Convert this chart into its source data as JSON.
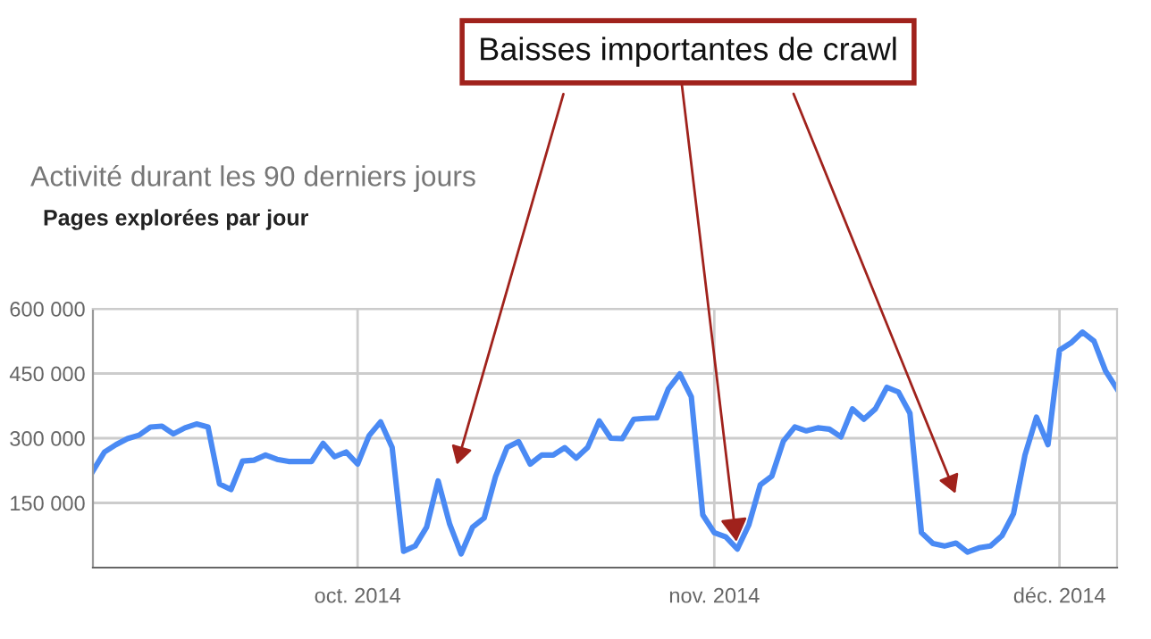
{
  "chart_data": {
    "type": "line",
    "title": "Activité durant les 90 derniers jours",
    "subtitle": "Pages explorées par jour",
    "annotations": [
      {
        "text": "Baisses importantes de crawl",
        "x": "2014-11-03",
        "y": 43000
      }
    ],
    "x": [
      "2014-09-08",
      "2014-09-09",
      "2014-09-10",
      "2014-09-11",
      "2014-09-12",
      "2014-09-13",
      "2014-09-14",
      "2014-09-15",
      "2014-09-16",
      "2014-09-17",
      "2014-09-18",
      "2014-09-19",
      "2014-09-20",
      "2014-09-21",
      "2014-09-22",
      "2014-09-23",
      "2014-09-24",
      "2014-09-25",
      "2014-09-26",
      "2014-09-27",
      "2014-09-28",
      "2014-09-29",
      "2014-09-30",
      "2014-10-01",
      "2014-10-02",
      "2014-10-03",
      "2014-10-04",
      "2014-10-05",
      "2014-10-06",
      "2014-10-07",
      "2014-10-08",
      "2014-10-09",
      "2014-10-10",
      "2014-10-11",
      "2014-10-12",
      "2014-10-13",
      "2014-10-14",
      "2014-10-15",
      "2014-10-16",
      "2014-10-17",
      "2014-10-18",
      "2014-10-19",
      "2014-10-20",
      "2014-10-21",
      "2014-10-22",
      "2014-10-23",
      "2014-10-24",
      "2014-10-25",
      "2014-10-26",
      "2014-10-27",
      "2014-10-28",
      "2014-10-29",
      "2014-10-30",
      "2014-10-31",
      "2014-11-01",
      "2014-11-02",
      "2014-11-03",
      "2014-11-04",
      "2014-11-05",
      "2014-11-06",
      "2014-11-07",
      "2014-11-08",
      "2014-11-09",
      "2014-11-10",
      "2014-11-11",
      "2014-11-12",
      "2014-11-13",
      "2014-11-14",
      "2014-11-15",
      "2014-11-16",
      "2014-11-17",
      "2014-11-18",
      "2014-11-19",
      "2014-11-20",
      "2014-11-21",
      "2014-11-22",
      "2014-11-23",
      "2014-11-24",
      "2014-11-25",
      "2014-11-26",
      "2014-11-27",
      "2014-11-28",
      "2014-11-29",
      "2014-11-30",
      "2014-12-01",
      "2014-12-02",
      "2014-12-03",
      "2014-12-04",
      "2014-12-05",
      "2014-12-06"
    ],
    "series": [
      {
        "color": "#4a8af4",
        "values": [
          224000,
          268000,
          285000,
          299000,
          307000,
          326000,
          328000,
          310000,
          324000,
          333000,
          326000,
          194000,
          181000,
          247000,
          249000,
          261000,
          251000,
          246000,
          246000,
          246000,
          288000,
          257000,
          268000,
          240000,
          306000,
          338000,
          279000,
          38000,
          50000,
          94000,
          201000,
          101000,
          32000,
          94000,
          115000,
          212000,
          279000,
          292000,
          240000,
          261000,
          261000,
          278000,
          254000,
          279000,
          340000,
          300000,
          299000,
          344000,
          346000,
          347000,
          414000,
          449000,
          396000,
          122000,
          81000,
          71000,
          43000,
          99000,
          192000,
          212000,
          293000,
          326000,
          317000,
          324000,
          321000,
          303000,
          368000,
          344000,
          368000,
          418000,
          407000,
          358000,
          81000,
          56000,
          50000,
          57000,
          36000,
          46000,
          50000,
          74000,
          125000,
          261000,
          349000,
          285000,
          504000,
          521000,
          546000,
          525000,
          456000,
          414000
        ]
      }
    ],
    "xlim": [
      "2014-09-08",
      "2014-12-06"
    ],
    "xticks": [
      {
        "value": "2014-10-01",
        "label": "oct. 2014"
      },
      {
        "value": "2014-11-01",
        "label": "nov. 2014"
      },
      {
        "value": "2014-12-01",
        "label": "déc. 2014"
      }
    ],
    "ylim": [
      0,
      600000
    ],
    "yticks": [
      {
        "value": 150000,
        "label": "150 000"
      },
      {
        "value": 300000,
        "label": "300 000"
      },
      {
        "value": 450000,
        "label": "450 000"
      },
      {
        "value": 600000,
        "label": "600 000"
      }
    ],
    "grid": true,
    "legend": false,
    "marker": "none",
    "line_style": "solid"
  }
}
